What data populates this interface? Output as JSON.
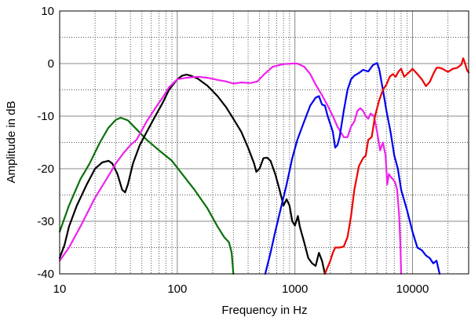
{
  "chart_data": {
    "type": "line",
    "xlabel": "Frequency in Hz",
    "ylabel": "Amplitude in dB",
    "x_scale": "log",
    "xlim": [
      10,
      30000
    ],
    "ylim": [
      -40,
      10
    ],
    "grid": true,
    "x_tick_labels": [
      "10",
      "100",
      "1000",
      "10000"
    ],
    "y_tick_labels": [
      "10",
      "0",
      "-10",
      "-20",
      "-30",
      "-40"
    ],
    "series": [
      {
        "color": "#0a700a",
        "points": [
          [
            10,
            -32
          ],
          [
            12,
            -27
          ],
          [
            15,
            -22
          ],
          [
            18,
            -19
          ],
          [
            22,
            -15
          ],
          [
            26,
            -12.2
          ],
          [
            30,
            -10.7
          ],
          [
            33,
            -10.3
          ],
          [
            38,
            -10.8
          ],
          [
            45,
            -12.5
          ],
          [
            55,
            -14.5
          ],
          [
            70,
            -16.5
          ],
          [
            90,
            -18.5
          ],
          [
            110,
            -21
          ],
          [
            140,
            -24
          ],
          [
            180,
            -27.5
          ],
          [
            220,
            -31
          ],
          [
            250,
            -33
          ],
          [
            275,
            -34
          ],
          [
            290,
            -36
          ],
          [
            300,
            -40
          ]
        ]
      },
      {
        "color": "#000000",
        "points": [
          [
            10,
            -37
          ],
          [
            11,
            -34.5
          ],
          [
            12,
            -31
          ],
          [
            14,
            -27
          ],
          [
            17,
            -23
          ],
          [
            20,
            -20
          ],
          [
            23,
            -18.8
          ],
          [
            26,
            -18.5
          ],
          [
            28,
            -19
          ],
          [
            31,
            -21
          ],
          [
            34,
            -24
          ],
          [
            36,
            -24.5
          ],
          [
            38,
            -23
          ],
          [
            42,
            -19
          ],
          [
            48,
            -15.5
          ],
          [
            55,
            -13
          ],
          [
            65,
            -10
          ],
          [
            75,
            -7.5
          ],
          [
            85,
            -5
          ],
          [
            100,
            -3
          ],
          [
            110,
            -2.3
          ],
          [
            120,
            -2.1
          ],
          [
            130,
            -2.3
          ],
          [
            150,
            -2.9
          ],
          [
            180,
            -4.2
          ],
          [
            220,
            -6.2
          ],
          [
            260,
            -8.3
          ],
          [
            300,
            -10.5
          ],
          [
            350,
            -13
          ],
          [
            400,
            -16
          ],
          [
            450,
            -19
          ],
          [
            470,
            -20.6
          ],
          [
            500,
            -20
          ],
          [
            540,
            -18
          ],
          [
            580,
            -17.9
          ],
          [
            620,
            -18.5
          ],
          [
            680,
            -21
          ],
          [
            740,
            -24
          ],
          [
            800,
            -27
          ],
          [
            850,
            -25.8
          ],
          [
            900,
            -27
          ],
          [
            950,
            -30
          ],
          [
            1000,
            -30.8
          ],
          [
            1060,
            -29
          ],
          [
            1100,
            -31
          ],
          [
            1200,
            -34
          ],
          [
            1300,
            -37
          ],
          [
            1400,
            -38
          ],
          [
            1500,
            -38.5
          ],
          [
            1600,
            -36
          ],
          [
            1700,
            -37.5
          ],
          [
            1800,
            -40
          ]
        ]
      },
      {
        "color": "#ee22ee",
        "points": [
          [
            10,
            -37.5
          ],
          [
            12,
            -35
          ],
          [
            15,
            -31
          ],
          [
            20,
            -25.5
          ],
          [
            25,
            -22
          ],
          [
            30,
            -19
          ],
          [
            35,
            -17
          ],
          [
            40,
            -15.5
          ],
          [
            45,
            -14.5
          ],
          [
            55,
            -11
          ],
          [
            65,
            -8.5
          ],
          [
            75,
            -6.5
          ],
          [
            85,
            -4.5
          ],
          [
            100,
            -3
          ],
          [
            120,
            -2.7
          ],
          [
            150,
            -2.5
          ],
          [
            180,
            -2.7
          ],
          [
            220,
            -3.1
          ],
          [
            260,
            -3.4
          ],
          [
            300,
            -3.8
          ],
          [
            350,
            -3.6
          ],
          [
            420,
            -3.7
          ],
          [
            480,
            -3.4
          ],
          [
            550,
            -2
          ],
          [
            650,
            -0.6
          ],
          [
            800,
            -0.1
          ],
          [
            950,
            0
          ],
          [
            1050,
            0
          ],
          [
            1200,
            -0.6
          ],
          [
            1350,
            -2
          ],
          [
            1500,
            -4
          ],
          [
            1700,
            -6
          ],
          [
            1900,
            -8
          ],
          [
            2100,
            -10
          ],
          [
            2300,
            -12
          ],
          [
            2600,
            -14
          ],
          [
            2800,
            -14
          ],
          [
            3000,
            -12
          ],
          [
            3200,
            -11
          ],
          [
            3400,
            -9
          ],
          [
            3600,
            -8.5
          ],
          [
            3800,
            -9
          ],
          [
            4000,
            -10
          ],
          [
            4200,
            -10.5
          ],
          [
            4400,
            -9.5
          ],
          [
            4700,
            -10
          ],
          [
            5000,
            -13
          ],
          [
            5300,
            -16.5
          ],
          [
            5600,
            -15
          ],
          [
            5900,
            -17.5
          ],
          [
            6100,
            -23
          ],
          [
            6300,
            -21
          ],
          [
            6500,
            -21.5
          ],
          [
            6800,
            -22
          ],
          [
            7100,
            -22.5
          ],
          [
            7400,
            -24
          ],
          [
            7700,
            -29
          ],
          [
            7900,
            -35
          ],
          [
            8000,
            -40
          ]
        ]
      },
      {
        "color": "#0000ee",
        "points": [
          [
            560,
            -40
          ],
          [
            620,
            -36
          ],
          [
            680,
            -32
          ],
          [
            750,
            -28
          ],
          [
            850,
            -23
          ],
          [
            950,
            -18
          ],
          [
            1050,
            -14.5
          ],
          [
            1200,
            -11
          ],
          [
            1350,
            -8
          ],
          [
            1500,
            -6.5
          ],
          [
            1600,
            -6.2
          ],
          [
            1700,
            -7.8
          ],
          [
            1800,
            -8
          ],
          [
            1900,
            -10
          ],
          [
            2000,
            -11.5
          ],
          [
            2100,
            -13
          ],
          [
            2200,
            -16
          ],
          [
            2300,
            -15.5
          ],
          [
            2400,
            -14
          ],
          [
            2600,
            -9
          ],
          [
            2800,
            -5
          ],
          [
            3000,
            -3
          ],
          [
            3200,
            -2.3
          ],
          [
            3500,
            -1.8
          ],
          [
            3800,
            -1.2
          ],
          [
            4200,
            -1.5
          ],
          [
            4600,
            -0.3
          ],
          [
            5000,
            0.1
          ],
          [
            5200,
            -1
          ],
          [
            5400,
            -3
          ],
          [
            5600,
            -5
          ],
          [
            6000,
            -9
          ],
          [
            6500,
            -13
          ],
          [
            7000,
            -17.5
          ],
          [
            7500,
            -20
          ],
          [
            8000,
            -24
          ],
          [
            9000,
            -28
          ],
          [
            10000,
            -32
          ],
          [
            11000,
            -35
          ],
          [
            12000,
            -35.5
          ],
          [
            13000,
            -36.5
          ],
          [
            14000,
            -37
          ],
          [
            15000,
            -38
          ],
          [
            16000,
            -37.5
          ],
          [
            17000,
            -40
          ]
        ]
      },
      {
        "color": "#ee0000",
        "points": [
          [
            1800,
            -40
          ],
          [
            2000,
            -37.5
          ],
          [
            2100,
            -36
          ],
          [
            2200,
            -35
          ],
          [
            2400,
            -35
          ],
          [
            2600,
            -34.8
          ],
          [
            2800,
            -33
          ],
          [
            3000,
            -29
          ],
          [
            3200,
            -24
          ],
          [
            3500,
            -19.5
          ],
          [
            3800,
            -18
          ],
          [
            4000,
            -17.5
          ],
          [
            4200,
            -14.5
          ],
          [
            4500,
            -14
          ],
          [
            4800,
            -10
          ],
          [
            5200,
            -7
          ],
          [
            5600,
            -5
          ],
          [
            6000,
            -4
          ],
          [
            6400,
            -2.5
          ],
          [
            6800,
            -2
          ],
          [
            7200,
            -2.5
          ],
          [
            7600,
            -1.5
          ],
          [
            8000,
            -1
          ],
          [
            8500,
            -2.5
          ],
          [
            9000,
            -2
          ],
          [
            9500,
            -1.5
          ],
          [
            10000,
            -1
          ],
          [
            10500,
            -1.5
          ],
          [
            11000,
            -2
          ],
          [
            12000,
            -3
          ],
          [
            13000,
            -4.3
          ],
          [
            14000,
            -3.5
          ],
          [
            15000,
            -2
          ],
          [
            16000,
            -0.8
          ],
          [
            17000,
            -0.8
          ],
          [
            18000,
            -1
          ],
          [
            20000,
            -1.6
          ],
          [
            22000,
            -1
          ],
          [
            24000,
            -0.8
          ],
          [
            26000,
            -0.2
          ],
          [
            27000,
            1
          ],
          [
            28000,
            0
          ],
          [
            29000,
            -1.2
          ],
          [
            30000,
            -1.7
          ]
        ]
      }
    ]
  }
}
